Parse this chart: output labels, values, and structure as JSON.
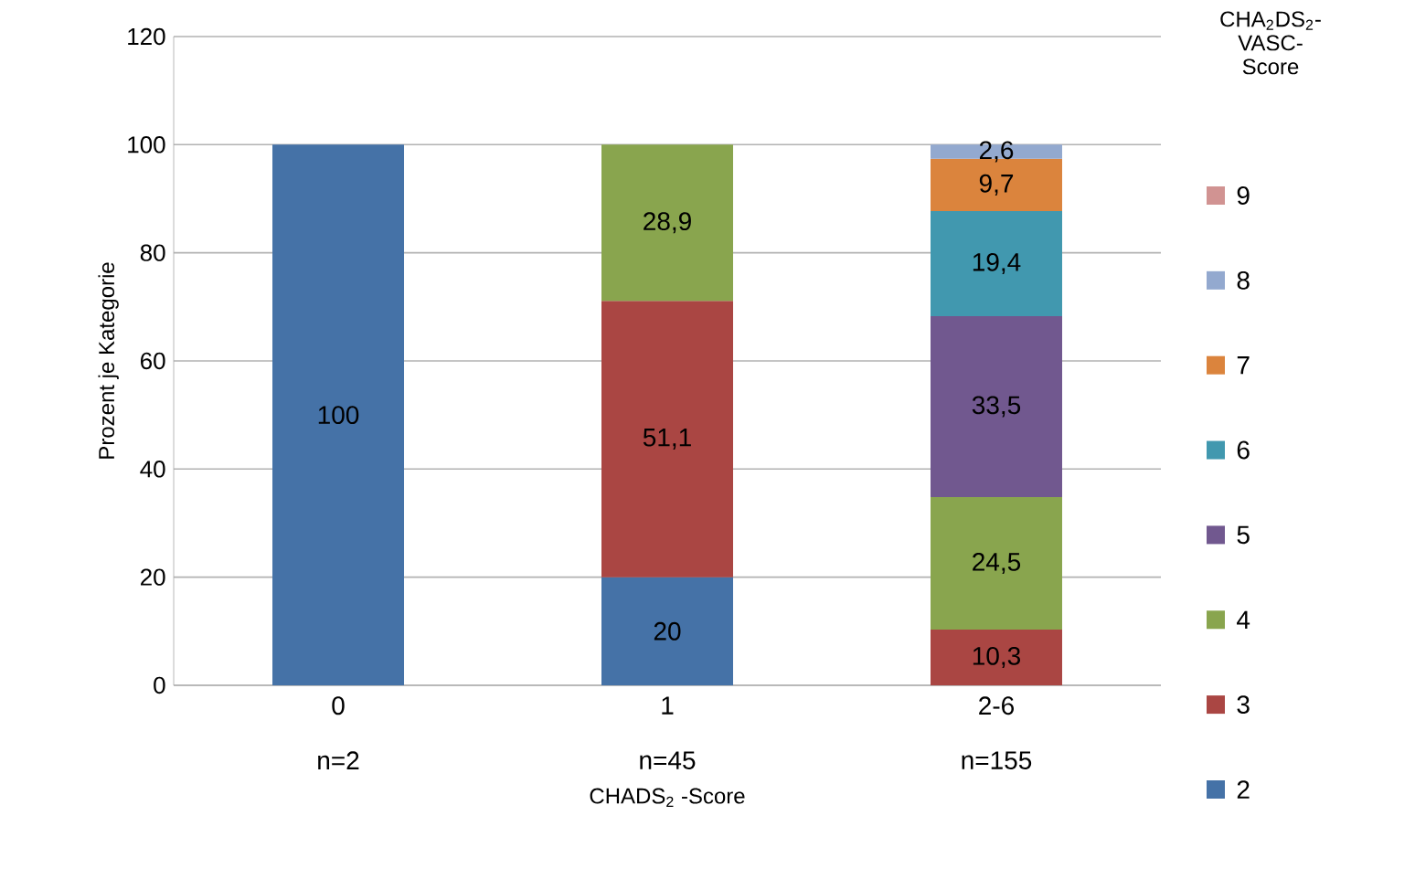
{
  "chart_data": {
    "type": "bar",
    "stacked": true,
    "categories": [
      "0",
      "1",
      "2-6"
    ],
    "annotations": [
      "n=2",
      "n=45",
      "n=155"
    ],
    "xlabel": "CHADS$_{2}$ -Score",
    "ylabel": "Prozent  je Kategorie",
    "legend_title": "CHA$_{2}$DS$_{2}$-VASC-Score",
    "ylim": [
      0,
      120
    ],
    "yticks": [
      0,
      20,
      40,
      60,
      80,
      100,
      120
    ],
    "grid": "y",
    "legend": "right",
    "series": [
      {
        "name": "2",
        "color": "#4572a7",
        "values": [
          100,
          20,
          null
        ],
        "value_labels": [
          "100",
          "20",
          null
        ]
      },
      {
        "name": "3",
        "color": "#aa4643",
        "values": [
          null,
          51.1,
          10.3
        ],
        "value_labels": [
          null,
          "51,1",
          "10,3"
        ]
      },
      {
        "name": "4",
        "color": "#89a54e",
        "values": [
          null,
          28.9,
          24.5
        ],
        "value_labels": [
          null,
          "28,9",
          "24,5"
        ]
      },
      {
        "name": "5",
        "color": "#71588f",
        "values": [
          null,
          null,
          33.5
        ],
        "value_labels": [
          null,
          null,
          "33,5"
        ]
      },
      {
        "name": "6",
        "color": "#4198af",
        "values": [
          null,
          null,
          19.4
        ],
        "value_labels": [
          null,
          null,
          "19,4"
        ]
      },
      {
        "name": "7",
        "color": "#db843d",
        "values": [
          null,
          null,
          9.7
        ],
        "value_labels": [
          null,
          null,
          "9,7"
        ]
      },
      {
        "name": "8",
        "color": "#93a9cf",
        "values": [
          null,
          null,
          2.6
        ],
        "value_labels": [
          null,
          null,
          "2,6"
        ]
      },
      {
        "name": "9",
        "color": "#d19392",
        "values": [
          null,
          null,
          null
        ]
      }
    ]
  }
}
